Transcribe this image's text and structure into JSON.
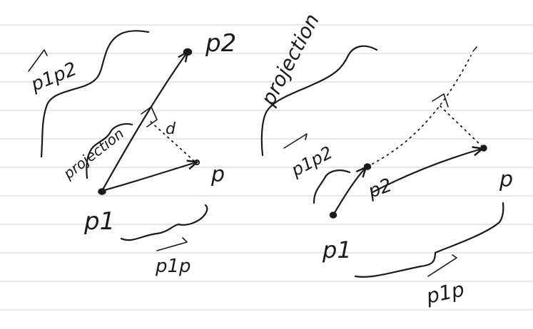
{
  "colors": {
    "ink": "#1b1b1b",
    "rule_lines": "#cfcfcf",
    "paper": "#ffffff"
  },
  "left_diagram": {
    "point_p1": "p1",
    "point_p2": "p2",
    "point_p": "p",
    "vector_p1p2": "p1p2",
    "vector_p1p": "p1p",
    "projection": "projection",
    "distance": "d"
  },
  "right_diagram": {
    "point_p1": "p1",
    "point_p2": "p2",
    "point_p": "p",
    "vector_p1p2": "p1p2",
    "vector_p1p": "p1p",
    "projection": "projection"
  }
}
